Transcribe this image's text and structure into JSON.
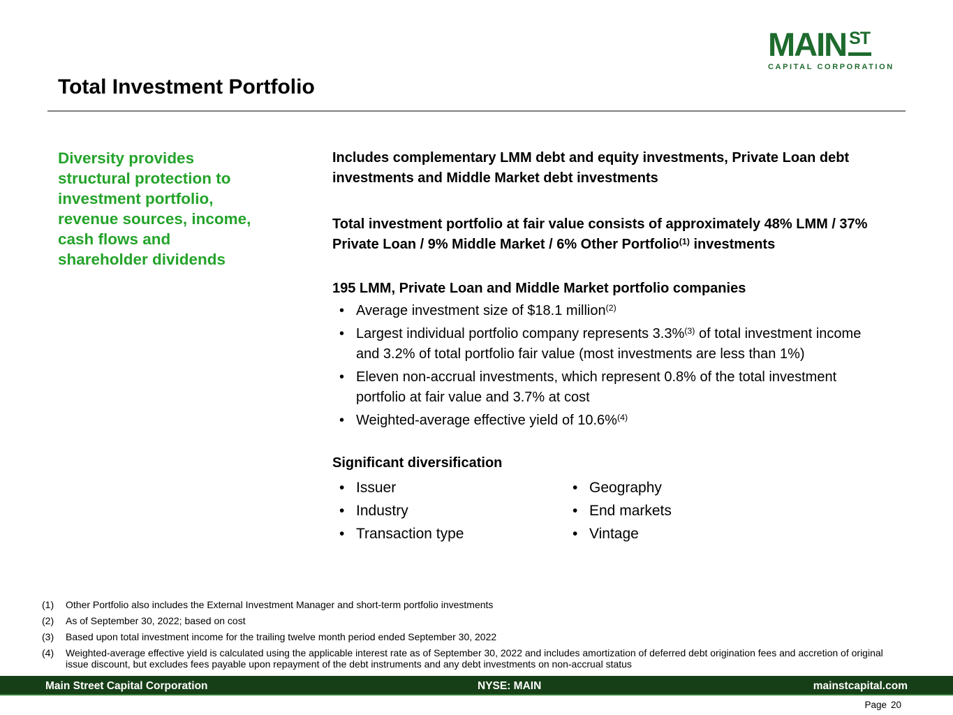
{
  "logo": {
    "main": "MAIN",
    "st": "ST",
    "subtitle": "CAPITAL CORPORATION"
  },
  "title": "Total Investment Portfolio",
  "sidebar": {
    "lines": [
      "Diversity provides",
      "structural protection to",
      "investment portfolio,",
      "revenue sources, income,",
      "cash flows and",
      "shareholder dividends"
    ]
  },
  "main": {
    "para1": "Includes complementary LMM debt and equity investments, Private Loan debt investments and Middle Market debt investments",
    "para2_pre": "Total investment portfolio at fair value consists of approximately 48% LMM / 37% Private Loan / 9% Middle Market / 6% Other Portfolio",
    "para2_sup": "(1)",
    "para2_post": " investments",
    "companies_heading": "195 LMM, Private Loan and Middle Market portfolio companies",
    "bullets": [
      {
        "pre": "Average investment size of $18.1 million",
        "sup": "(2)",
        "post": ""
      },
      {
        "pre": "Largest individual portfolio company represents 3.3%",
        "sup": "(3)",
        "post": " of total investment income and 3.2% of total portfolio fair value (most investments are less than 1%)"
      },
      {
        "pre": "Eleven non-accrual investments, which represent 0.8% of the total investment portfolio at fair value and 3.7% at cost",
        "sup": "",
        "post": ""
      },
      {
        "pre": "Weighted-average effective yield of 10.6%",
        "sup": "(4)",
        "post": ""
      }
    ],
    "diversification_heading": "Significant diversification",
    "diversification_left": [
      "Issuer",
      "Industry",
      "Transaction type"
    ],
    "diversification_right": [
      "Geography",
      "End markets",
      "Vintage"
    ]
  },
  "footnotes": [
    {
      "num": "(1)",
      "text": "Other Portfolio also includes the External Investment Manager and short-term portfolio investments"
    },
    {
      "num": "(2)",
      "text": "As of September 30, 2022; based on cost"
    },
    {
      "num": "(3)",
      "text": "Based upon total investment income for the trailing twelve month period ended September 30, 2022"
    },
    {
      "num": "(4)",
      "text": "Weighted-average effective yield is calculated using the applicable interest rate as of September 30, 2022 and includes amortization of deferred debt origination fees and accretion of original issue discount, but excludes fees payable upon repayment of the debt instruments and any debt investments on non-accrual status"
    }
  ],
  "footer": {
    "company": "Main Street Capital Corporation",
    "ticker": "NYSE: MAIN",
    "website": "mainstcapital.com",
    "page_label": "Page",
    "page_number": "20"
  },
  "colors": {
    "brand_green_dark": "#1e6b2e",
    "accent_green": "#24a32a",
    "footer_bar_green": "#173f17",
    "footer_underline_green": "#357f35",
    "divider_gray": "#7f7f7f"
  }
}
